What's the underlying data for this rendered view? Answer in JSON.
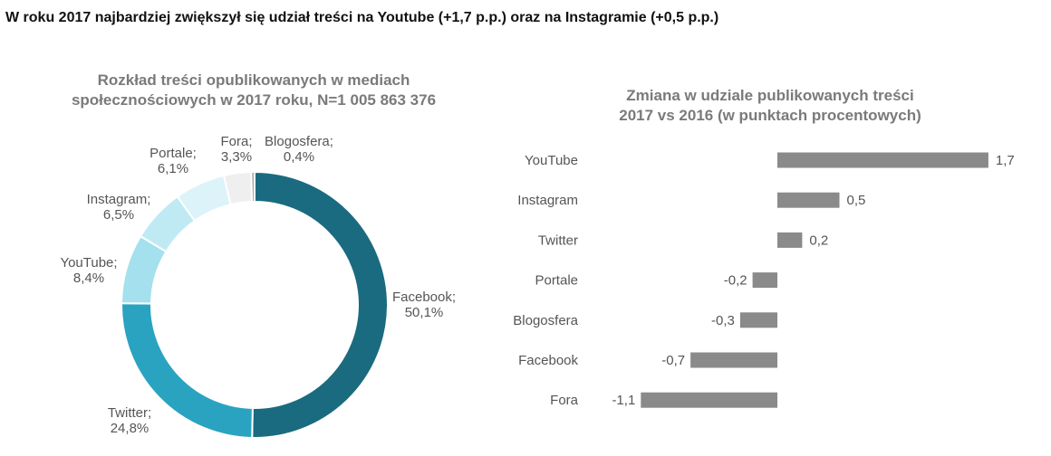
{
  "headline": "W roku 2017 najbardziej zwiększył się udział treści na Youtube (+1,7 p.p.) oraz na Instagramie (+0,5 p.p.)",
  "chart_data": [
    {
      "type": "pie",
      "donut": true,
      "title_lines": [
        "Rozkład treści opublikowanych w mediach",
        "społecznościowych w 2017 roku, N=1 005 863 376"
      ],
      "slices": [
        {
          "name": "Facebook",
          "value": 50.1,
          "label": "50,1%",
          "color": "#1a6b7f"
        },
        {
          "name": "Twitter",
          "value": 24.8,
          "label": "24,8%",
          "color": "#2aa3c1"
        },
        {
          "name": "YouTube",
          "value": 8.4,
          "label": "8,4%",
          "color": "#a4e0ee"
        },
        {
          "name": "Instagram",
          "value": 6.5,
          "label": "6,5%",
          "color": "#bfeaf4"
        },
        {
          "name": "Portale",
          "value": 6.1,
          "label": "6,1%",
          "color": "#dbf3f9"
        },
        {
          "name": "Fora",
          "value": 3.3,
          "label": "3,3%",
          "color": "#efefef"
        },
        {
          "name": "Blogosfera",
          "value": 0.4,
          "label": "0,4%",
          "color": "#a8a8a8"
        }
      ]
    },
    {
      "type": "bar",
      "orientation": "horizontal",
      "title_lines": [
        "Zmiana w udziale publikowanych treści",
        "2017 vs 2016 (w punktach procentowych)"
      ],
      "categories": [
        "YouTube",
        "Instagram",
        "Twitter",
        "Portale",
        "Blogosfera",
        "Facebook",
        "Fora"
      ],
      "values": [
        1.7,
        0.5,
        0.2,
        -0.2,
        -0.3,
        -0.7,
        -1.1
      ],
      "value_labels": [
        "1,7",
        "0,5",
        "0,2",
        "-0,2",
        "-0,3",
        "-0,7",
        "-1,1"
      ],
      "bar_color": "#8a8a8a",
      "xlim": [
        -1.1,
        1.7
      ]
    }
  ]
}
